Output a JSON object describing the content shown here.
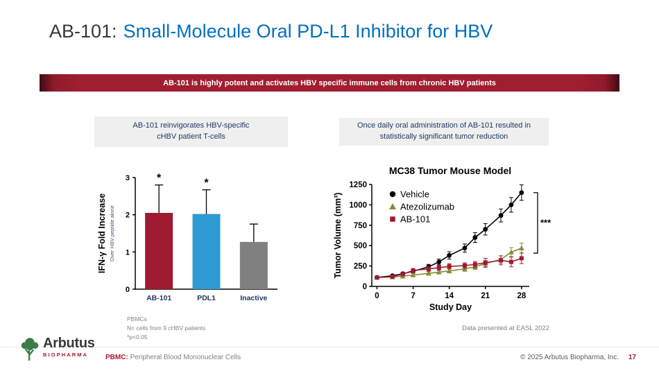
{
  "slide": {
    "title": {
      "prefix": "AB-101:",
      "main": "Small-Molecule Oral PD-L1 Inhibitor for HBV"
    },
    "banner": "AB-101 is highly potent and activates HBV specific immune cells from chronic HBV patients",
    "left_panel": {
      "header_line1": "AB-101 reinvigorates HBV-specific",
      "header_line2": "cHBV patient T-cells",
      "footnotes": [
        "PBMCs",
        "N= cells from 9 cHBV patients",
        "*p<0.05"
      ]
    },
    "right_panel": {
      "header_line1": "Once daily oral administration of AB-101 resulted in",
      "header_line2": "statistically significant tumor reduction",
      "footnote": "Data presented at EASL 2022"
    },
    "footer": {
      "logo_name": "Arbutus",
      "logo_sub": "BIOPHARMA",
      "abbrev_label": "PBMC:",
      "abbrev_text": "Peripheral Blood Mononuclear Cells",
      "copyright": "© 2025 Arbutus Biopharma, Inc.",
      "page_number": "17"
    }
  },
  "colors": {
    "title_blue": "#0070C0",
    "banner_red": "#A01E31",
    "header_navy": "#1F3864",
    "bar_red": "#9E1B32",
    "bar_blue": "#2E9BD5",
    "bar_gray": "#808080",
    "olive": "#8A8B3A",
    "footer_red": "#A6192E"
  },
  "chart_data": [
    {
      "type": "bar",
      "title": "",
      "categories": [
        "AB-101",
        "PDL1",
        "Inactive"
      ],
      "values": [
        2.05,
        2.02,
        1.27
      ],
      "errors_up": [
        0.75,
        0.65,
        0.48
      ],
      "significance": [
        "*",
        "*",
        ""
      ],
      "bar_colors": [
        "#9E1B32",
        "#2E9BD5",
        "#808080"
      ],
      "ylabel": "IFN-γ Fold Increase",
      "ylabel_sub": "Over HBV peptide alone",
      "xlabel": "",
      "ylim": [
        0,
        3
      ],
      "yticks": [
        0,
        1,
        2,
        3
      ],
      "grid": false
    },
    {
      "type": "line",
      "title": "MC38 Tumor Mouse Model",
      "xlabel": "Study Day",
      "ylabel": "Tumor Volume (mm³)",
      "ylim": [
        0,
        1250
      ],
      "yticks": [
        0,
        250,
        500,
        750,
        1000,
        1250
      ],
      "xticks": [
        0,
        7,
        14,
        21,
        28
      ],
      "annotation": "***",
      "legend_position": "top-left",
      "grid": false,
      "series": [
        {
          "name": "Vehicle",
          "color": "#000000",
          "marker": "circle",
          "x": [
            0,
            3,
            5,
            7,
            10,
            12,
            14,
            17,
            19,
            21,
            24,
            26,
            28
          ],
          "y": [
            110,
            130,
            155,
            185,
            240,
            300,
            380,
            470,
            600,
            700,
            870,
            1000,
            1150
          ],
          "err": [
            15,
            15,
            20,
            25,
            30,
            35,
            45,
            50,
            60,
            70,
            80,
            90,
            95
          ]
        },
        {
          "name": "Atezolizumab",
          "color": "#8A8B3A",
          "marker": "triangle",
          "x": [
            0,
            3,
            5,
            7,
            10,
            12,
            14,
            17,
            19,
            21,
            24,
            26,
            28
          ],
          "y": [
            110,
            115,
            125,
            140,
            160,
            175,
            190,
            215,
            240,
            280,
            330,
            420,
            470
          ],
          "err": [
            12,
            12,
            15,
            18,
            20,
            22,
            25,
            30,
            32,
            38,
            45,
            55,
            60
          ]
        },
        {
          "name": "AB-101",
          "color": "#9E1B32",
          "marker": "square",
          "x": [
            0,
            3,
            5,
            7,
            10,
            12,
            14,
            17,
            19,
            21,
            24,
            26,
            28
          ],
          "y": [
            110,
            120,
            150,
            195,
            215,
            230,
            245,
            255,
            270,
            290,
            320,
            300,
            345
          ],
          "err": [
            12,
            15,
            20,
            25,
            28,
            30,
            32,
            34,
            36,
            55,
            55,
            60,
            65
          ]
        }
      ]
    }
  ]
}
